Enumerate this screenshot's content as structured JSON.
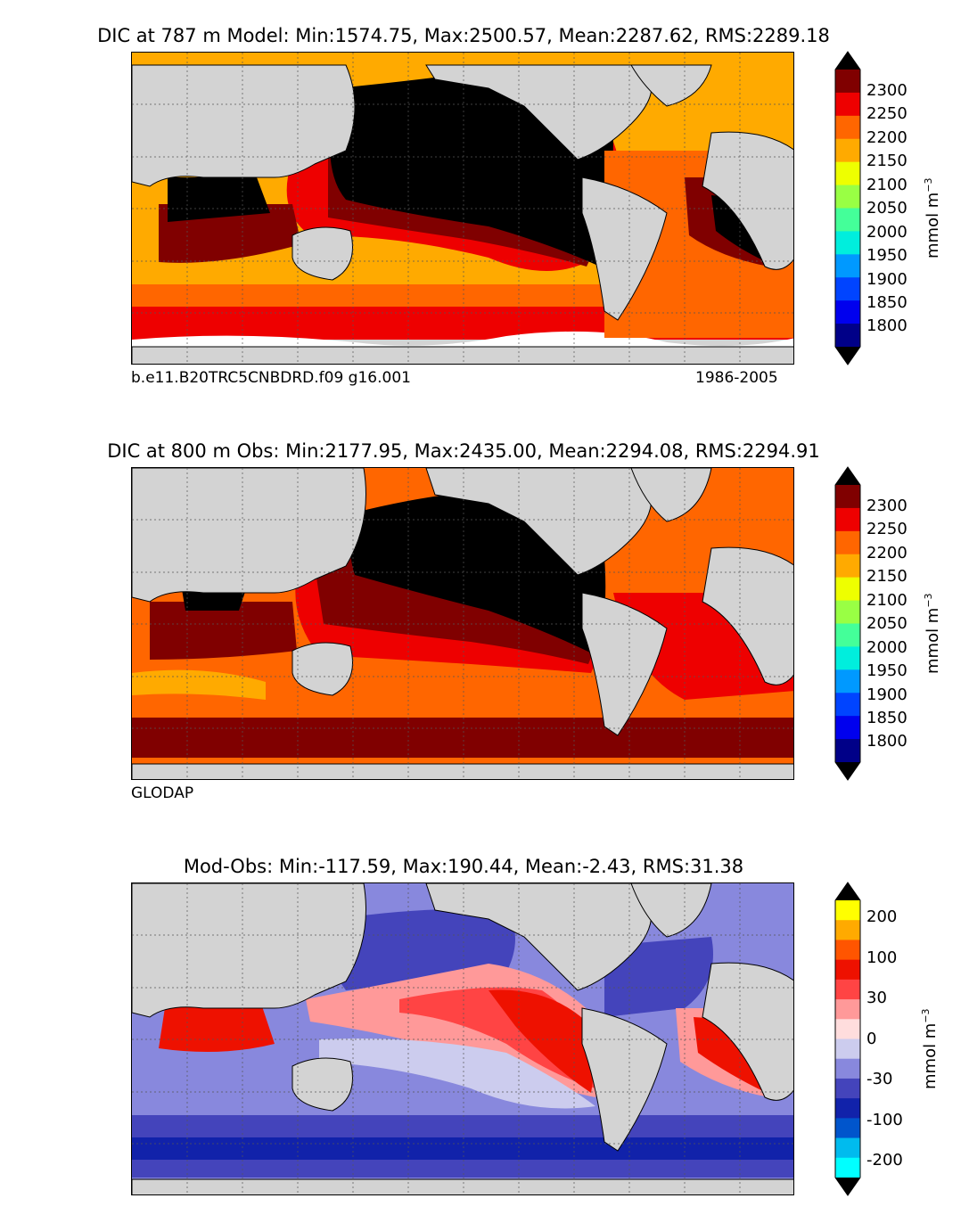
{
  "panels": [
    {
      "title": "DIC at 787 m Model: Min:1574.75, Max:2500.57, Mean:2287.62, RMS:2289.18",
      "left_note": "b.e11.B20TRC5CNBDRD.f09 g16.001",
      "right_note": "1986-2005",
      "unit": "mmol m",
      "unit_exp": "−3",
      "colorbar_labels": [
        "2300",
        "2250",
        "2200",
        "2150",
        "2100",
        "2050",
        "2000",
        "1950",
        "1900",
        "1850",
        "1800"
      ],
      "colorbar_colors": [
        "#000000",
        "#800000",
        "#ee0000",
        "#ff6600",
        "#ffaa00",
        "#eeff00",
        "#99ff44",
        "#44ff99",
        "#00eedd",
        "#0099ff",
        "#0044ff",
        "#0000ee",
        "#000088",
        "#000000"
      ]
    },
    {
      "title": "DIC at 800 m Obs: Min:2177.95, Max:2435.00, Mean:2294.08, RMS:2294.91",
      "left_note": "GLODAP",
      "right_note": "",
      "unit": "mmol m",
      "unit_exp": "−3",
      "colorbar_labels": [
        "2300",
        "2250",
        "2200",
        "2150",
        "2100",
        "2050",
        "2000",
        "1950",
        "1900",
        "1850",
        "1800"
      ],
      "colorbar_colors": [
        "#000000",
        "#800000",
        "#ee0000",
        "#ff6600",
        "#ffaa00",
        "#eeff00",
        "#99ff44",
        "#44ff99",
        "#00eedd",
        "#0099ff",
        "#0044ff",
        "#0000ee",
        "#000088",
        "#000000"
      ]
    },
    {
      "title": "Mod-Obs: Min:-117.59, Max:190.44, Mean:-2.43, RMS:31.38",
      "left_note": "",
      "right_note": "",
      "unit": "mmol m",
      "unit_exp": "−3",
      "colorbar_labels": [
        "200",
        "100",
        "30",
        "0",
        "-30",
        "-100",
        "-200"
      ],
      "colorbar_colors": [
        "#000000",
        "#ffff00",
        "#ffaa00",
        "#ff5500",
        "#ee1100",
        "#ff4444",
        "#ff9999",
        "#ffdddd",
        "#ccccee",
        "#8888dd",
        "#4444bb",
        "#1122aa",
        "#0055cc",
        "#00bbee",
        "#00ffff",
        "#000000"
      ]
    }
  ],
  "colors": {
    "land": "#d3d3d3",
    "ice": "#ffffff",
    "grid": "#555555"
  }
}
